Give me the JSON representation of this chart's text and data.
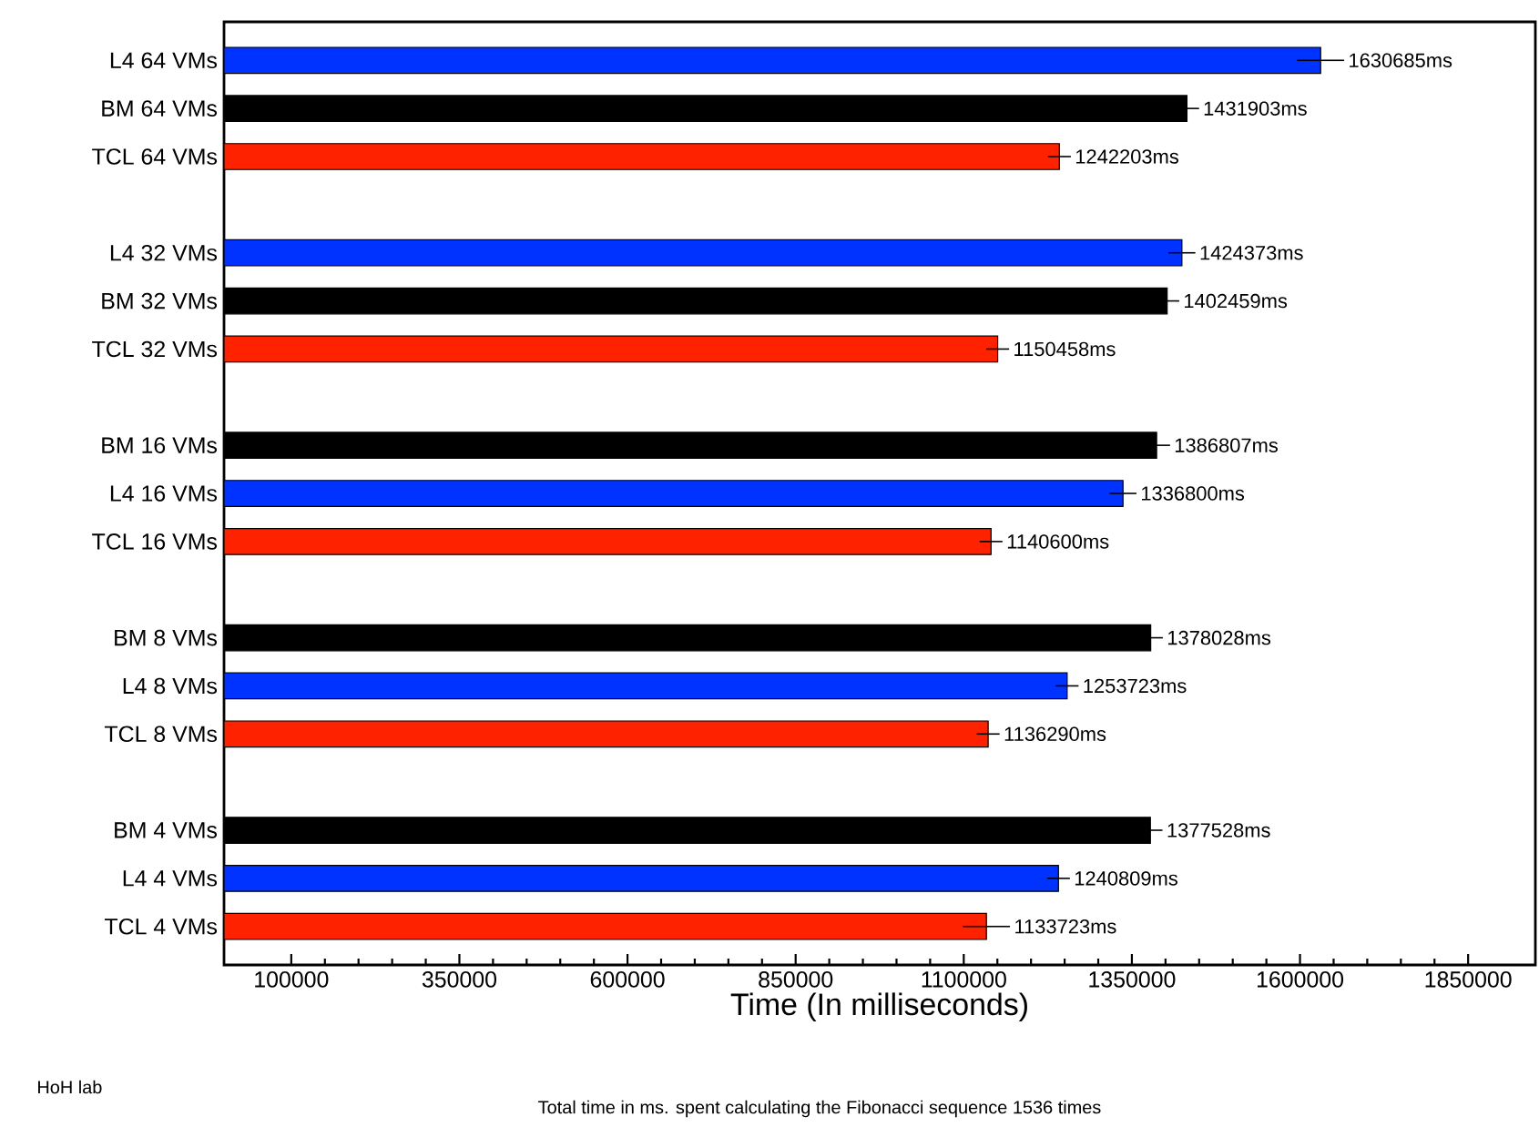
{
  "chart_data": {
    "type": "bar",
    "orientation": "horizontal",
    "xlabel": "Time (In milliseconds)",
    "categories": [
      "L4 64 VMs",
      "BM 64 VMs",
      "TCL 64 VMs",
      null,
      "L4 32 VMs",
      "BM 32 VMs",
      "TCL 32 VMs",
      null,
      "BM 16 VMs",
      "L4 16 VMs",
      "TCL 16 VMs",
      null,
      "BM 8 VMs",
      "L4 8 VMs",
      "TCL 8 VMs",
      null,
      "BM 4 VMs",
      "L4 4 VMs",
      "TCL 4 VMs"
    ],
    "values": [
      1630685,
      1431903,
      1242203,
      null,
      1424373,
      1402459,
      1150458,
      null,
      1386807,
      1336800,
      1140600,
      null,
      1378028,
      1253723,
      1136290,
      null,
      1377528,
      1240809,
      1133723
    ],
    "errors": [
      35000,
      18000,
      17000,
      null,
      20000,
      18000,
      17000,
      null,
      20000,
      20000,
      17000,
      null,
      18000,
      17000,
      17000,
      null,
      18000,
      17000,
      35000
    ],
    "value_labels": [
      "1630685ms",
      "1431903ms",
      "1242203ms",
      null,
      "1424373ms",
      "1402459ms",
      "1150458ms",
      null,
      "1386807ms",
      "1336800ms",
      "1140600ms",
      null,
      "1378028ms",
      "1253723ms",
      "1136290ms",
      null,
      "1377528ms",
      "1240809ms",
      "1133723ms"
    ],
    "colors": [
      "#0033ff",
      "#000000",
      "#ff2200",
      null,
      "#0033ff",
      "#000000",
      "#ff2200",
      null,
      "#000000",
      "#0033ff",
      "#ff2200",
      null,
      "#000000",
      "#0033ff",
      "#ff2200",
      null,
      "#000000",
      "#0033ff",
      "#ff2200"
    ],
    "xlim": [
      0,
      1950000
    ],
    "xticks": [
      100000,
      350000,
      600000,
      850000,
      1100000,
      1350000,
      1600000,
      1850000
    ],
    "annotations": [
      "HoH lab",
      "Total time in ms. spent calculating the Fibonacci sequence 1536 times"
    ]
  }
}
